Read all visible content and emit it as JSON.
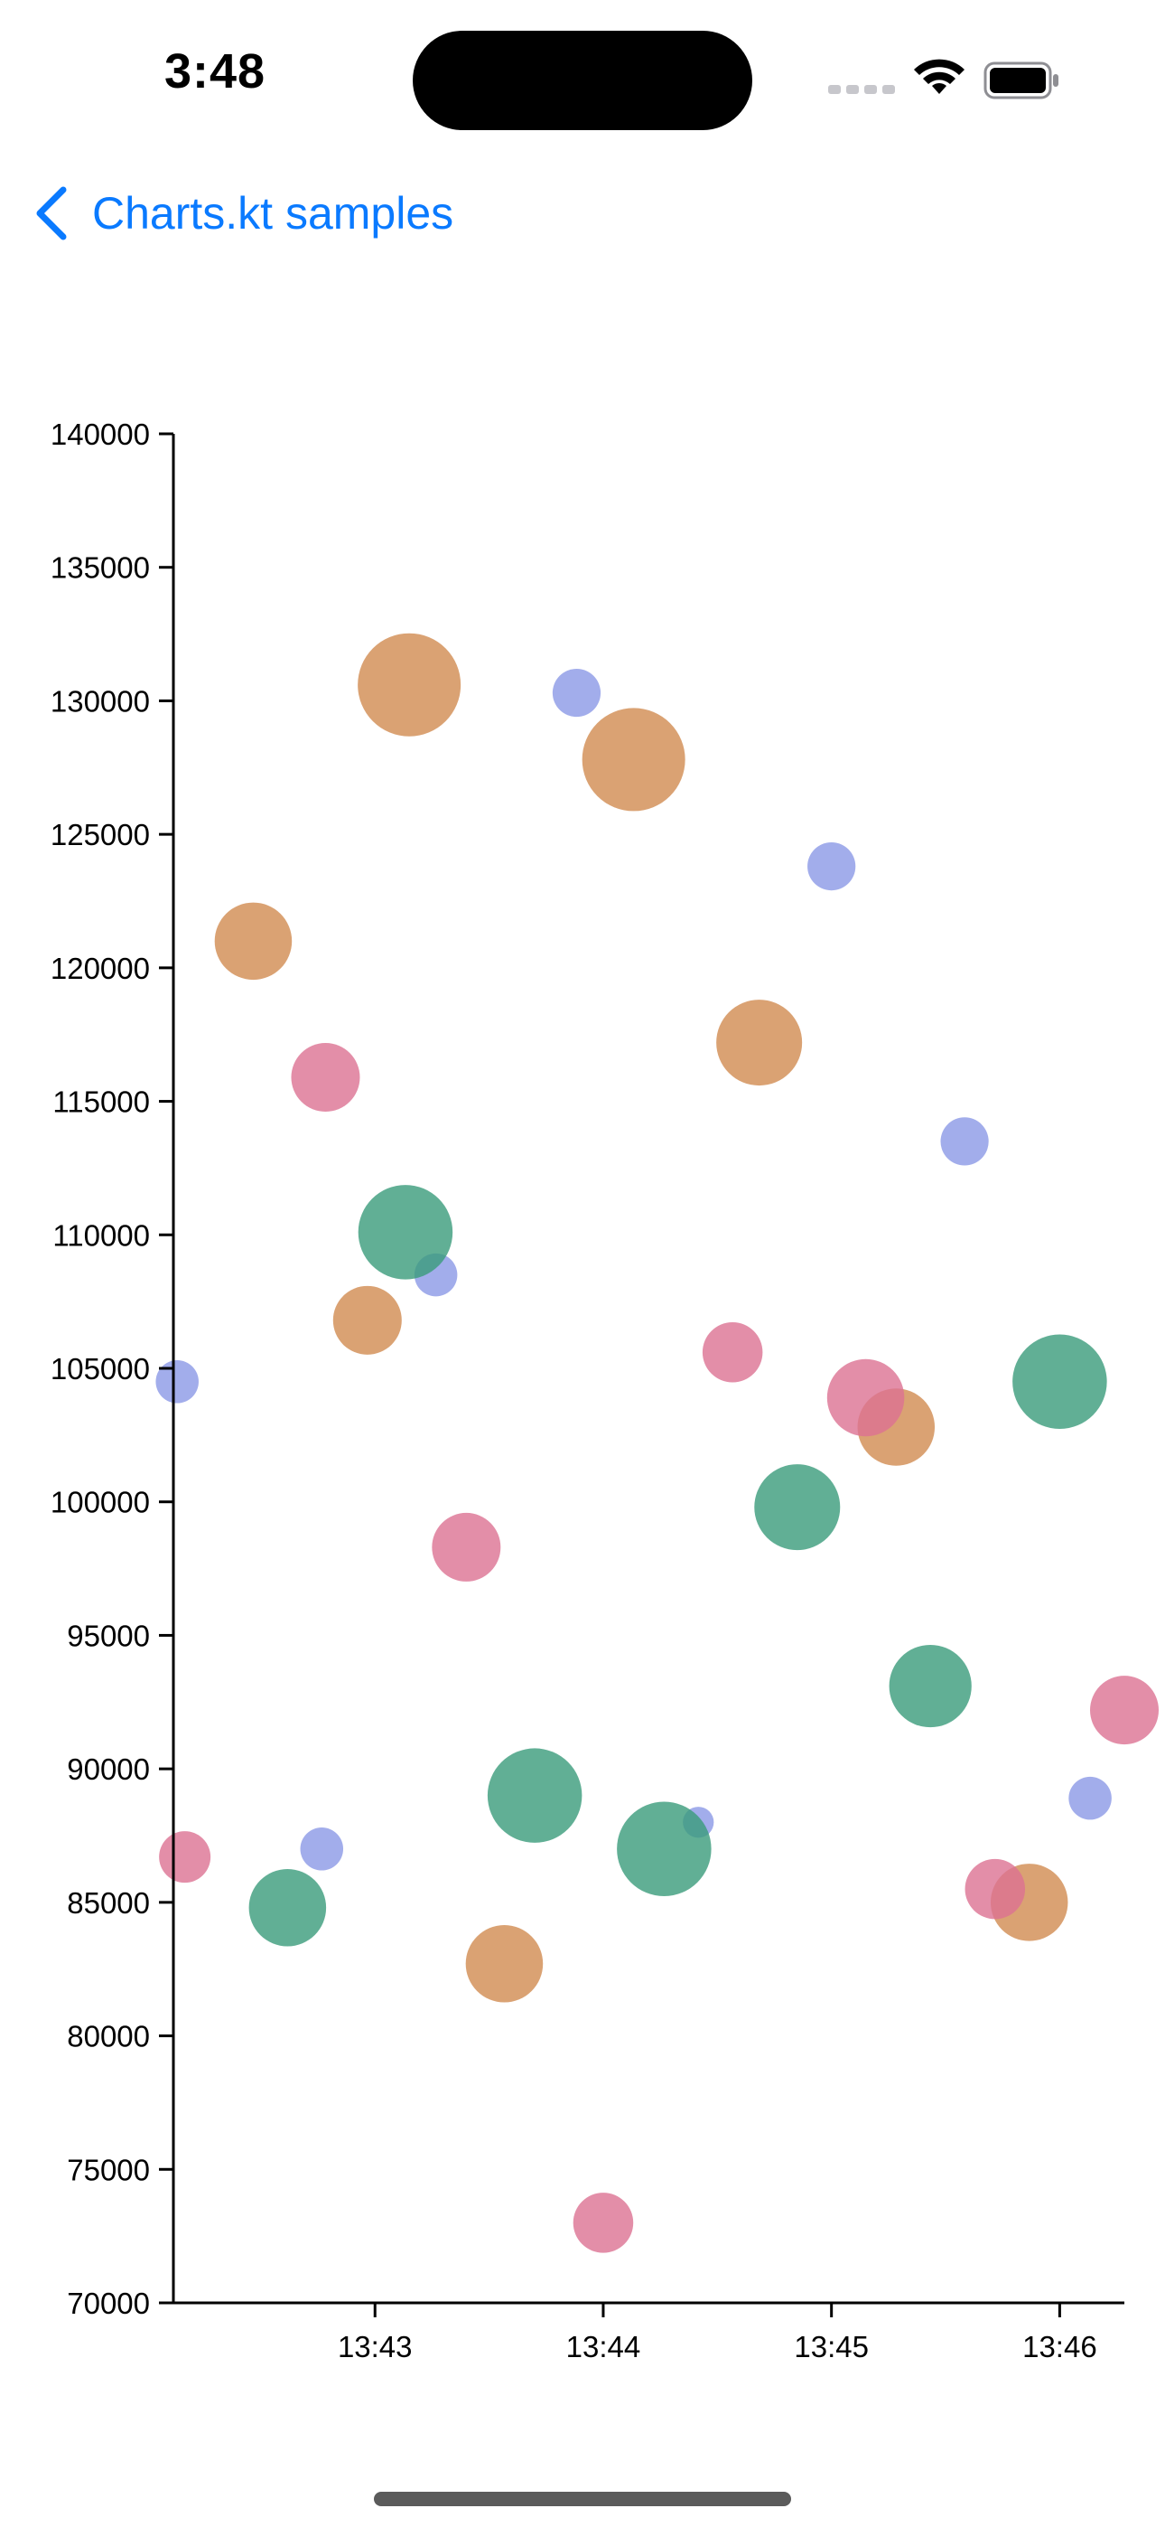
{
  "status_bar": {
    "time": "3:48",
    "icons": [
      "cellular-dots-icon",
      "wifi-icon",
      "battery-icon"
    ]
  },
  "nav": {
    "back_label": "Charts.kt samples",
    "back_icon": "chevron-left-icon",
    "accent_color": "#0a7aff"
  },
  "chart_data": {
    "type": "scatter",
    "variant": "bubble",
    "title": "",
    "xlabel": "",
    "ylabel": "",
    "x_axis": {
      "kind": "time",
      "range": [
        "13:42:07",
        "13:46:17"
      ],
      "ticks": [
        "13:43",
        "13:44",
        "13:45",
        "13:46"
      ]
    },
    "y_axis": {
      "range": [
        70000,
        140000
      ],
      "ticks": [
        70000,
        75000,
        80000,
        85000,
        90000,
        95000,
        100000,
        105000,
        110000,
        115000,
        120000,
        125000,
        130000,
        135000,
        140000
      ]
    },
    "grid": false,
    "legend": "none",
    "series": [
      {
        "color": "#d18b50",
        "points": [
          {
            "time": "13:42:28",
            "y": 121000,
            "size": 0.45
          },
          {
            "time": "13:43:09",
            "y": 130600,
            "size": 0.6
          },
          {
            "time": "13:42:58",
            "y": 106800,
            "size": 0.4
          },
          {
            "time": "13:44:08",
            "y": 127800,
            "size": 0.6
          },
          {
            "time": "13:44:41",
            "y": 117200,
            "size": 0.5
          },
          {
            "time": "13:43:34",
            "y": 82700,
            "size": 0.45
          },
          {
            "time": "13:45:17",
            "y": 102800,
            "size": 0.45
          },
          {
            "time": "13:45:52",
            "y": 85000,
            "size": 0.45
          }
        ]
      },
      {
        "color": "#8b98e6",
        "points": [
          {
            "time": "13:42:08",
            "y": 104500,
            "size": 0.25
          },
          {
            "time": "13:42:46",
            "y": 87000,
            "size": 0.25
          },
          {
            "time": "13:43:16",
            "y": 108500,
            "size": 0.25
          },
          {
            "time": "13:43:53",
            "y": 130300,
            "size": 0.28
          },
          {
            "time": "13:44:25",
            "y": 88000,
            "size": 0.18
          },
          {
            "time": "13:45:00",
            "y": 123800,
            "size": 0.28
          },
          {
            "time": "13:45:35",
            "y": 113500,
            "size": 0.28
          },
          {
            "time": "13:46:08",
            "y": 88900,
            "size": 0.25
          }
        ]
      },
      {
        "color": "#3a9b7b",
        "points": [
          {
            "time": "13:42:37",
            "y": 84800,
            "size": 0.45
          },
          {
            "time": "13:43:08",
            "y": 110100,
            "size": 0.55
          },
          {
            "time": "13:43:42",
            "y": 89000,
            "size": 0.55
          },
          {
            "time": "13:44:16",
            "y": 87000,
            "size": 0.55
          },
          {
            "time": "13:44:51",
            "y": 99800,
            "size": 0.5
          },
          {
            "time": "13:45:26",
            "y": 93100,
            "size": 0.48
          },
          {
            "time": "13:46:00",
            "y": 104500,
            "size": 0.55
          }
        ]
      },
      {
        "color": "#dc7292",
        "points": [
          {
            "time": "13:42:10",
            "y": 86700,
            "size": 0.3
          },
          {
            "time": "13:42:47",
            "y": 115900,
            "size": 0.4
          },
          {
            "time": "13:43:24",
            "y": 98300,
            "size": 0.4
          },
          {
            "time": "13:44:00",
            "y": 73000,
            "size": 0.35
          },
          {
            "time": "13:44:34",
            "y": 105600,
            "size": 0.35
          },
          {
            "time": "13:45:09",
            "y": 103900,
            "size": 0.45
          },
          {
            "time": "13:45:43",
            "y": 85500,
            "size": 0.35
          },
          {
            "time": "13:46:17",
            "y": 92200,
            "size": 0.4
          }
        ]
      }
    ]
  }
}
